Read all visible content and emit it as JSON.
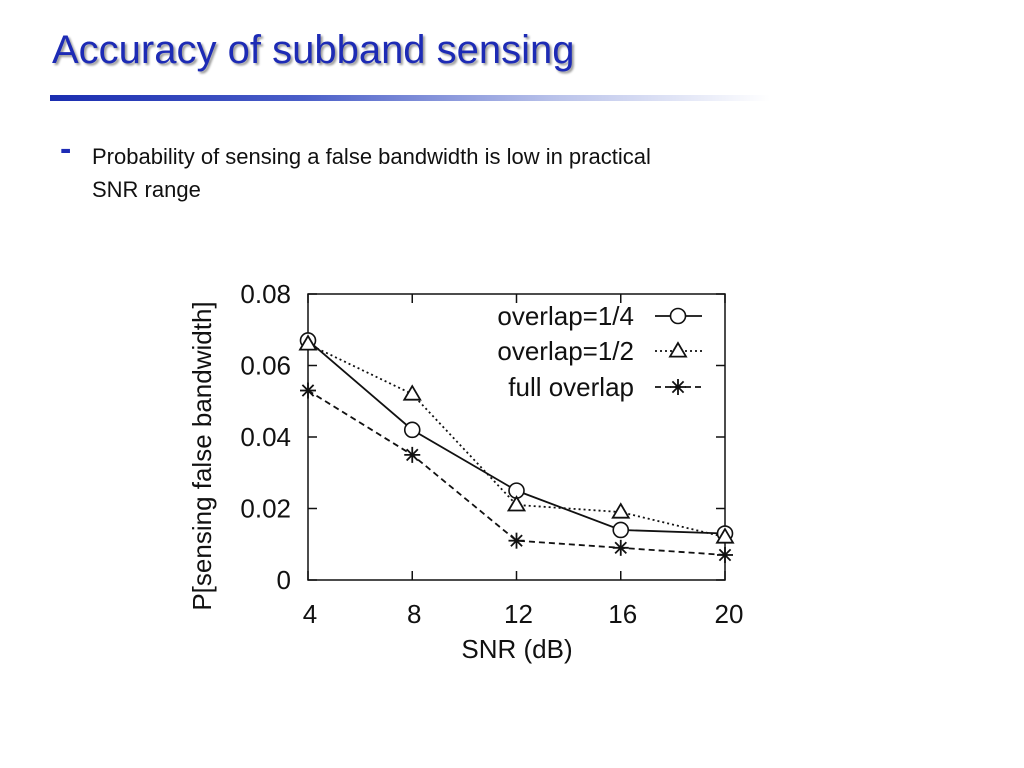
{
  "slide": {
    "title": "Accuracy of subband sensing",
    "bullet_marker": "-",
    "bullet_lines": [
      "Probability of sensing a false bandwidth is low in practical",
      "SNR range"
    ]
  },
  "colors": {
    "title": "#1d2bb5",
    "series": "#111111"
  },
  "chart_data": {
    "type": "line",
    "title": "",
    "xlabel": "SNR (dB)",
    "ylabel": "P[sensing false bandwidth]",
    "x": [
      4,
      8,
      12,
      16,
      20
    ],
    "xlim": [
      4,
      20
    ],
    "ylim": [
      0,
      0.08
    ],
    "xticks": [
      4,
      8,
      12,
      16,
      20
    ],
    "yticks": [
      0,
      0.02,
      0.04,
      0.06,
      0.08
    ],
    "xtick_labels": [
      "4",
      "8",
      "12",
      "16",
      "20"
    ],
    "ytick_labels": [
      "0",
      "0.02",
      "0.04",
      "0.06",
      "0.08"
    ],
    "legend_position": "top-right",
    "series": [
      {
        "name": "overlap=1/4",
        "marker": "circle",
        "line": "solid",
        "values": [
          0.067,
          0.042,
          0.025,
          0.014,
          0.013
        ]
      },
      {
        "name": "overlap=1/2",
        "marker": "triangle",
        "line": "dotted",
        "values": [
          0.066,
          0.052,
          0.021,
          0.019,
          0.012
        ]
      },
      {
        "name": "full overlap",
        "marker": "star",
        "line": "dashed",
        "values": [
          0.053,
          0.035,
          0.011,
          0.009,
          0.007
        ]
      }
    ]
  }
}
